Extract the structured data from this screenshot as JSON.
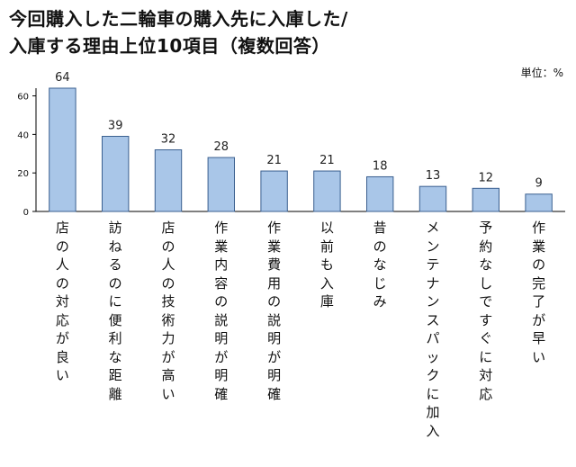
{
  "chart_data": {
    "type": "bar",
    "title_lines": [
      "今回購入した二輪車の購入先に入庫した/",
      "入庫する理由上位10項目（複数回答）"
    ],
    "unit_label": "単位：%",
    "ylim": [
      0,
      64
    ],
    "yticks": [
      "0",
      "20",
      "40",
      "60"
    ],
    "grid": false,
    "bar_color": "#a9c6e8",
    "bar_stroke": "#3a5f8f",
    "categories": [
      "店の人の対応が良い",
      "訪ねるのに便利な距離",
      "店の人の技術力が高い",
      "作業内容の説明が明確",
      "作業費用の説明が明確",
      "以前も入庫",
      "昔のなじみ",
      "メンテナンスパックに加入",
      "予約なしですぐに対応",
      "作業の完了が早い"
    ],
    "values": [
      64,
      39,
      32,
      28,
      21,
      21,
      18,
      13,
      12,
      9
    ],
    "value_labels": [
      "64",
      "39",
      "32",
      "28",
      "21",
      "21",
      "18",
      "13",
      "12",
      "9"
    ]
  }
}
